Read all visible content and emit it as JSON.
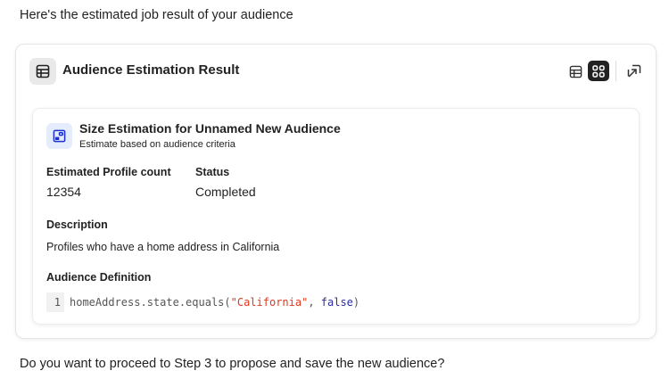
{
  "intro_text": "Here's the estimated job result of your audience",
  "card": {
    "title": "Audience Estimation Result",
    "icon": "table-icon",
    "toolbar": {
      "table_view": "table-icon",
      "grid_view": "grid-icon",
      "open": "open-external-icon"
    },
    "estimation": {
      "title": "Size Estimation for Unnamed New Audience",
      "subtitle": "Estimate based on audience criteria",
      "profile_count_label": "Estimated Profile count",
      "profile_count": "12354",
      "status_label": "Status",
      "status": "Completed",
      "description_label": "Description",
      "description": "Profiles who have a home address in California",
      "definition_label": "Audience Definition",
      "code": {
        "line": "1",
        "prefix": "homeAddress.state.equals(",
        "string": "\"California\"",
        "sep": ", ",
        "keyword": "false",
        "suffix": ")"
      }
    }
  },
  "outro_text": "Do you want to proceed to Step 3 to propose and save the new audience?"
}
